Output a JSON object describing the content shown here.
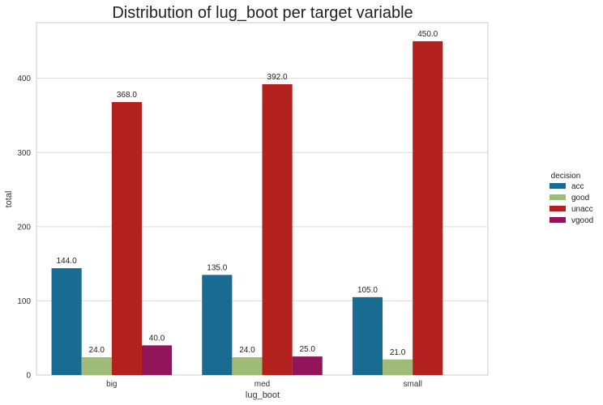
{
  "chart_data": {
    "type": "bar",
    "title": "Distribution of lug_boot per target variable",
    "xlabel": "lug_boot",
    "ylabel": "total",
    "categories": [
      "big",
      "med",
      "small"
    ],
    "ylim": [
      0,
      475
    ],
    "yticks": [
      0,
      100,
      200,
      300,
      400
    ],
    "grid": true,
    "legend": {
      "title": "decision",
      "placement": "right"
    },
    "series": [
      {
        "name": "acc",
        "color": "#1a6b91",
        "values": [
          144.0,
          135.0,
          105.0
        ],
        "labels": [
          "144.0",
          "135.0",
          "105.0"
        ]
      },
      {
        "name": "good",
        "color": "#9ebc78",
        "values": [
          24.0,
          24.0,
          21.0
        ],
        "labels": [
          "24.0",
          "24.0",
          "21.0"
        ]
      },
      {
        "name": "unacc",
        "color": "#b2211e",
        "values": [
          368.0,
          392.0,
          450.0
        ],
        "labels": [
          "368.0",
          "392.0",
          "450.0"
        ]
      },
      {
        "name": "vgood",
        "color": "#921459",
        "values": [
          40.0,
          25.0,
          null
        ],
        "labels": [
          "40.0",
          "25.0",
          null
        ]
      }
    ]
  }
}
